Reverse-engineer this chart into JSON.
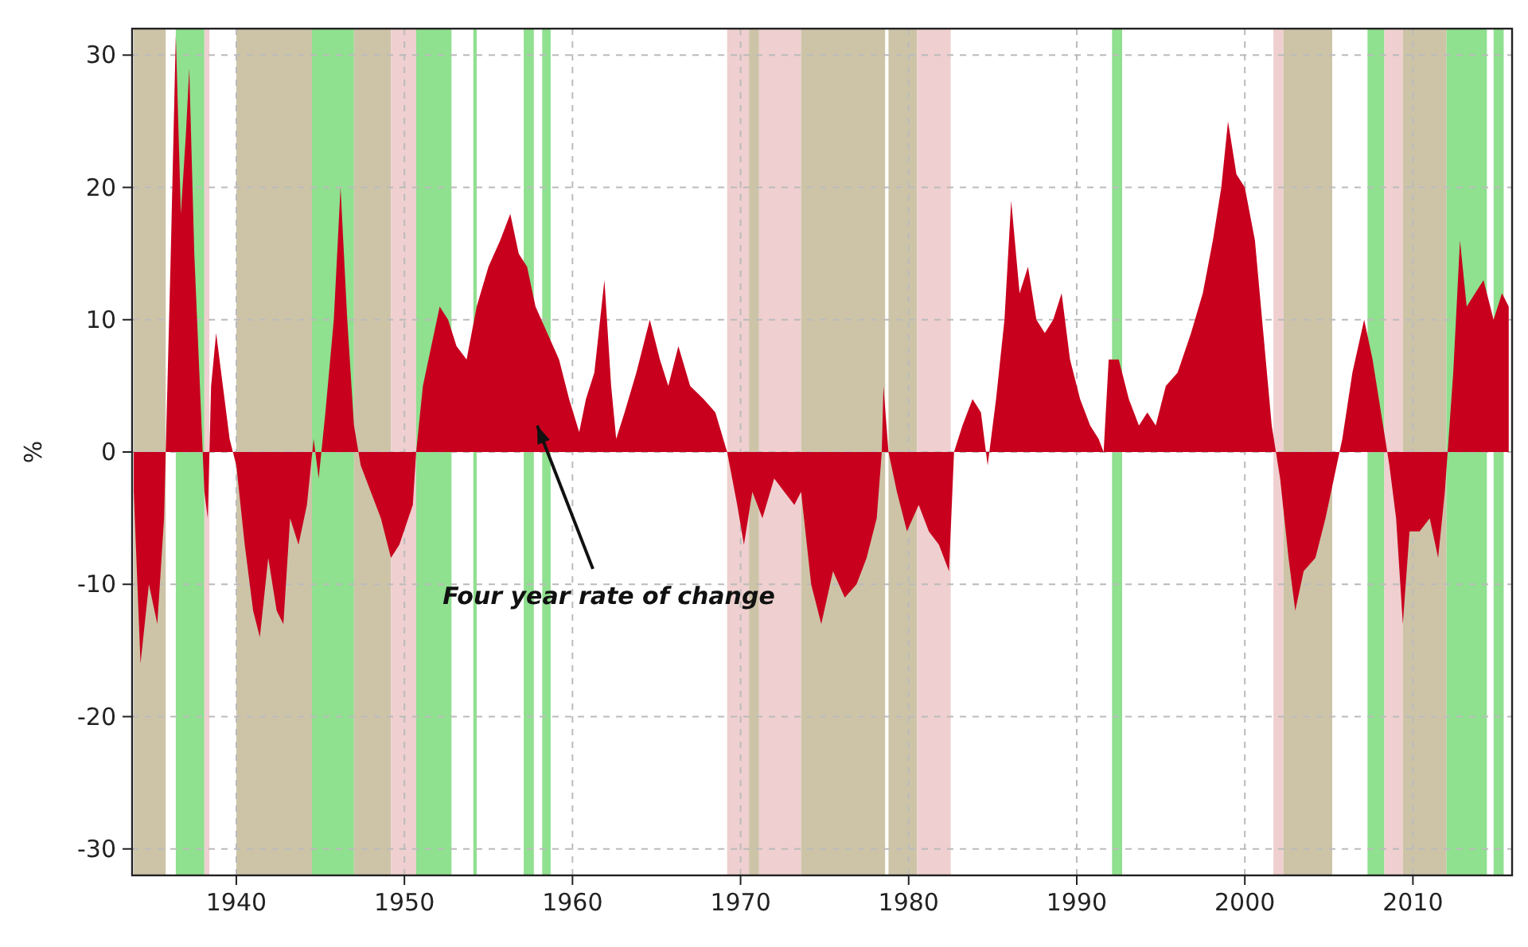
{
  "chart_data": {
    "type": "area",
    "ylabel": "%",
    "xlim": [
      1933.8,
      2015.9
    ],
    "ylim": [
      -32,
      32
    ],
    "xticks": [
      1940,
      1950,
      1960,
      1970,
      1980,
      1990,
      2000,
      2010
    ],
    "yticks": [
      -30,
      -20,
      -10,
      0,
      10,
      20,
      30
    ],
    "grid": true,
    "annotations": [
      {
        "text": "Four year rate of change",
        "x": 1957.9,
        "y": 2
      }
    ],
    "bands": [
      {
        "axis": "x",
        "from": 1933.9,
        "to": 1935.8,
        "color": "#cdc4a8"
      },
      {
        "axis": "x",
        "from": 1936.4,
        "to": 1938.1,
        "color": "#8fe08f"
      },
      {
        "axis": "x",
        "from": 1938.1,
        "to": 1938.4,
        "color": "#efcfcf"
      },
      {
        "axis": "x",
        "from": 1940.0,
        "to": 1944.5,
        "color": "#cdc4a8"
      },
      {
        "axis": "x",
        "from": 1944.5,
        "to": 1947.0,
        "color": "#8fe08f"
      },
      {
        "axis": "x",
        "from": 1947.0,
        "to": 1949.2,
        "color": "#cdc4a8"
      },
      {
        "axis": "x",
        "from": 1949.2,
        "to": 1950.7,
        "color": "#efcfcf"
      },
      {
        "axis": "x",
        "from": 1950.7,
        "to": 1952.8,
        "color": "#8fe08f"
      },
      {
        "axis": "x",
        "from": 1954.1,
        "to": 1954.3,
        "color": "#8fe08f"
      },
      {
        "axis": "x",
        "from": 1957.1,
        "to": 1957.7,
        "color": "#8fe08f"
      },
      {
        "axis": "x",
        "from": 1958.2,
        "to": 1958.7,
        "color": "#8fe08f"
      },
      {
        "axis": "x",
        "from": 1969.2,
        "to": 1970.5,
        "color": "#efcfcf"
      },
      {
        "axis": "x",
        "from": 1970.5,
        "to": 1971.1,
        "color": "#cdc4a8"
      },
      {
        "axis": "x",
        "from": 1971.1,
        "to": 1973.6,
        "color": "#efcfcf"
      },
      {
        "axis": "x",
        "from": 1973.6,
        "to": 1978.6,
        "color": "#cdc4a8"
      },
      {
        "axis": "x",
        "from": 1978.8,
        "to": 1980.5,
        "color": "#cdc4a8"
      },
      {
        "axis": "x",
        "from": 1980.5,
        "to": 1982.5,
        "color": "#efcfcf"
      },
      {
        "axis": "x",
        "from": 1992.1,
        "to": 1992.7,
        "color": "#8fe08f"
      },
      {
        "axis": "x",
        "from": 2001.7,
        "to": 2002.3,
        "color": "#efcfcf"
      },
      {
        "axis": "x",
        "from": 2002.3,
        "to": 2005.2,
        "color": "#cdc4a8"
      },
      {
        "axis": "x",
        "from": 2007.3,
        "to": 2008.3,
        "color": "#8fe08f"
      },
      {
        "axis": "x",
        "from": 2008.3,
        "to": 2009.4,
        "color": "#efcfcf"
      },
      {
        "axis": "x",
        "from": 2009.4,
        "to": 2012.0,
        "color": "#cdc4a8"
      },
      {
        "axis": "x",
        "from": 2012.0,
        "to": 2014.4,
        "color": "#8fe08f"
      },
      {
        "axis": "x",
        "from": 2014.8,
        "to": 2015.4,
        "color": "#8fe08f"
      }
    ],
    "x": [
      1933.9,
      1934.3,
      1934.8,
      1935.3,
      1935.7,
      1935.9,
      1936.1,
      1936.4,
      1936.7,
      1937.0,
      1937.2,
      1937.5,
      1937.9,
      1938.1,
      1938.3,
      1938.5,
      1938.8,
      1939.2,
      1939.6,
      1940.0,
      1940.5,
      1941.0,
      1941.4,
      1941.9,
      1942.4,
      1942.8,
      1943.2,
      1943.7,
      1944.2,
      1944.6,
      1944.9,
      1945.3,
      1945.8,
      1946.2,
      1946.6,
      1947.0,
      1947.4,
      1948.0,
      1948.6,
      1949.2,
      1949.7,
      1950.5,
      1950.7,
      1951.1,
      1951.6,
      1952.1,
      1952.6,
      1953.1,
      1953.7,
      1954.3,
      1955.0,
      1955.7,
      1956.3,
      1956.8,
      1957.3,
      1957.8,
      1958.5,
      1959.2,
      1959.8,
      1960.4,
      1960.8,
      1961.3,
      1961.9,
      1962.3,
      1962.6,
      1963.1,
      1963.8,
      1964.6,
      1965.2,
      1965.7,
      1966.3,
      1967.0,
      1967.8,
      1968.5,
      1969.2,
      1969.8,
      1970.2,
      1970.7,
      1971.3,
      1972.0,
      1972.6,
      1973.2,
      1973.6,
      1974.2,
      1974.8,
      1975.5,
      1976.2,
      1976.9,
      1977.5,
      1978.1,
      1978.4,
      1978.5,
      1978.8,
      1979.3,
      1979.9,
      1980.6,
      1981.2,
      1981.8,
      1982.4,
      1982.7,
      1983.2,
      1983.8,
      1984.3,
      1984.7,
      1985.2,
      1985.7,
      1986.1,
      1986.6,
      1987.1,
      1987.6,
      1988.1,
      1988.6,
      1989.1,
      1989.6,
      1990.2,
      1990.8,
      1991.3,
      1991.6,
      1991.9,
      1992.5,
      1993.1,
      1993.7,
      1994.2,
      1994.7,
      1995.3,
      1996.0,
      1996.8,
      1997.5,
      1998.1,
      1998.6,
      1999.0,
      1999.5,
      2000.0,
      2000.6,
      2001.1,
      2001.6,
      2002.1,
      2002.6,
      2003.0,
      2003.5,
      2004.2,
      2004.8,
      2005.3,
      2005.8,
      2006.4,
      2007.1,
      2007.6,
      2008.1,
      2008.6,
      2009.0,
      2009.4,
      2009.8,
      2010.4,
      2011.0,
      2011.5,
      2011.9,
      2012.4,
      2012.8,
      2013.2,
      2013.7,
      2014.2,
      2014.8,
      2015.3,
      2015.7
    ],
    "series": [
      {
        "color": "#c8001e",
        "values": [
          -3,
          -16,
          -10,
          -13,
          -5,
          5,
          15,
          31.5,
          18,
          24,
          29,
          15,
          3,
          -3,
          -5,
          5,
          9,
          5,
          1,
          -1,
          -7,
          -12,
          -14,
          -8,
          -12,
          -13,
          -5,
          -7,
          -4,
          1,
          -2,
          3,
          10,
          20,
          10,
          2,
          -1,
          -3,
          -5,
          -8,
          -7,
          -4,
          0,
          5,
          8,
          11,
          10,
          8,
          7,
          11,
          14,
          16,
          18,
          15,
          14,
          11,
          9,
          7,
          4,
          1.5,
          4,
          6,
          13,
          5,
          1,
          3,
          6,
          10,
          7,
          5,
          8,
          5,
          4,
          3,
          0,
          -4,
          -7,
          -3,
          -5,
          -2,
          -3,
          -4,
          -3,
          -10,
          -13,
          -9,
          -11,
          -10,
          -8,
          -5,
          0,
          5,
          0,
          -3,
          -6,
          -4,
          -6,
          -7,
          -9,
          0,
          2,
          4,
          3,
          -1,
          4,
          10,
          19,
          12,
          14,
          10,
          9,
          10,
          12,
          7,
          4,
          2,
          1,
          0,
          7,
          7,
          4,
          2,
          3,
          2,
          5,
          6,
          9,
          12,
          16,
          20,
          25,
          21,
          20,
          16,
          9,
          2,
          -2,
          -8,
          -12,
          -9,
          -8,
          -5,
          -2,
          1,
          6,
          10,
          7,
          3,
          -1,
          -5,
          -13,
          -6,
          -6,
          -5,
          -8,
          -3,
          6,
          16,
          11,
          12,
          13,
          10,
          12,
          11
        ]
      }
    ]
  }
}
